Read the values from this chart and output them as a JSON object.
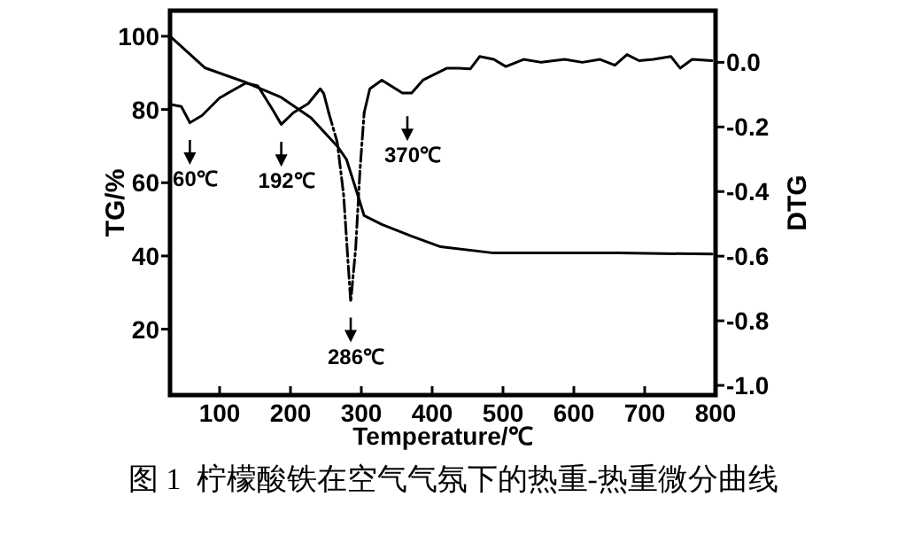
{
  "chart_data": {
    "type": "line",
    "xlabel": "Temperature/℃",
    "ylabel": "TG/%",
    "y2label": "DTG",
    "xlim": [
      30,
      800
    ],
    "xticks": [
      100,
      200,
      300,
      400,
      500,
      600,
      700,
      800
    ],
    "ylim": [
      2,
      107
    ],
    "yticks": [
      20,
      40,
      60,
      80,
      100
    ],
    "y2lim": [
      -1.03,
      0.16
    ],
    "y2ticks": [
      {
        "value": 0,
        "label": "0.0"
      },
      {
        "value": -0.2,
        "label": "-0.2"
      },
      {
        "value": -0.4,
        "label": "-0.4"
      },
      {
        "value": -0.6,
        "label": "-0.6"
      },
      {
        "value": -0.8,
        "label": "-0.8"
      },
      {
        "value": -1.0,
        "label": "-1.0"
      }
    ],
    "series": [
      {
        "color": "#000000",
        "line_style": "solid",
        "x": [
          30,
          79,
          137,
          187,
          229,
          266,
          279,
          295,
          304,
          329,
          371,
          412,
          487,
          662,
          795
        ],
        "values": [
          100,
          91.4,
          87.4,
          83.3,
          77.7,
          70,
          66.4,
          56.6,
          51,
          48.6,
          45.4,
          42.5,
          40.8,
          40.8,
          40.5
        ]
      },
      {
        "color": "#000000",
        "line_style": "solid",
        "axis": "y2",
        "x": [
          30,
          46,
          58,
          75,
          100,
          137,
          154,
          175,
          187,
          204,
          225,
          242,
          247,
          254
        ],
        "values": [
          -0.13,
          -0.137,
          -0.187,
          -0.165,
          -0.11,
          -0.064,
          -0.073,
          -0.147,
          -0.192,
          -0.156,
          -0.128,
          -0.082,
          -0.097,
          -0.156
        ]
      },
      {
        "color": "#000000",
        "line_style": "dashed",
        "axis": "y2",
        "x": [
          254,
          266,
          275,
          285,
          292,
          298,
          304
        ],
        "values": [
          -0.156,
          -0.247,
          -0.41,
          -0.742,
          -0.577,
          -0.339,
          -0.156
        ]
      },
      {
        "color": "#000000",
        "line_style": "solid",
        "axis": "y2",
        "x": [
          304,
          312,
          329,
          358,
          371,
          387,
          421,
          437,
          454,
          467,
          487,
          504,
          529,
          554,
          587,
          612,
          637,
          658,
          675,
          692,
          712,
          737,
          750,
          767,
          795
        ],
        "values": [
          -0.156,
          -0.082,
          -0.055,
          -0.095,
          -0.095,
          -0.055,
          -0.018,
          -0.018,
          -0.02,
          0.018,
          0.009,
          -0.013,
          0.009,
          0,
          0.009,
          0,
          0.009,
          -0.009,
          0.024,
          0.005,
          0.009,
          0.018,
          -0.018,
          0.009,
          0.005
        ]
      }
    ],
    "annotations": [
      {
        "text": "60℃",
        "x": 58,
        "y": 76.5
      },
      {
        "text": "192℃",
        "x": 187,
        "y": 76
      },
      {
        "text": "286℃",
        "x": 285,
        "y": 28
      },
      {
        "text": "370℃",
        "x": 365,
        "y": 83
      },
      "图 1  柠檬酸铁在空气气氛下的热重-热重微分曲线"
    ]
  }
}
